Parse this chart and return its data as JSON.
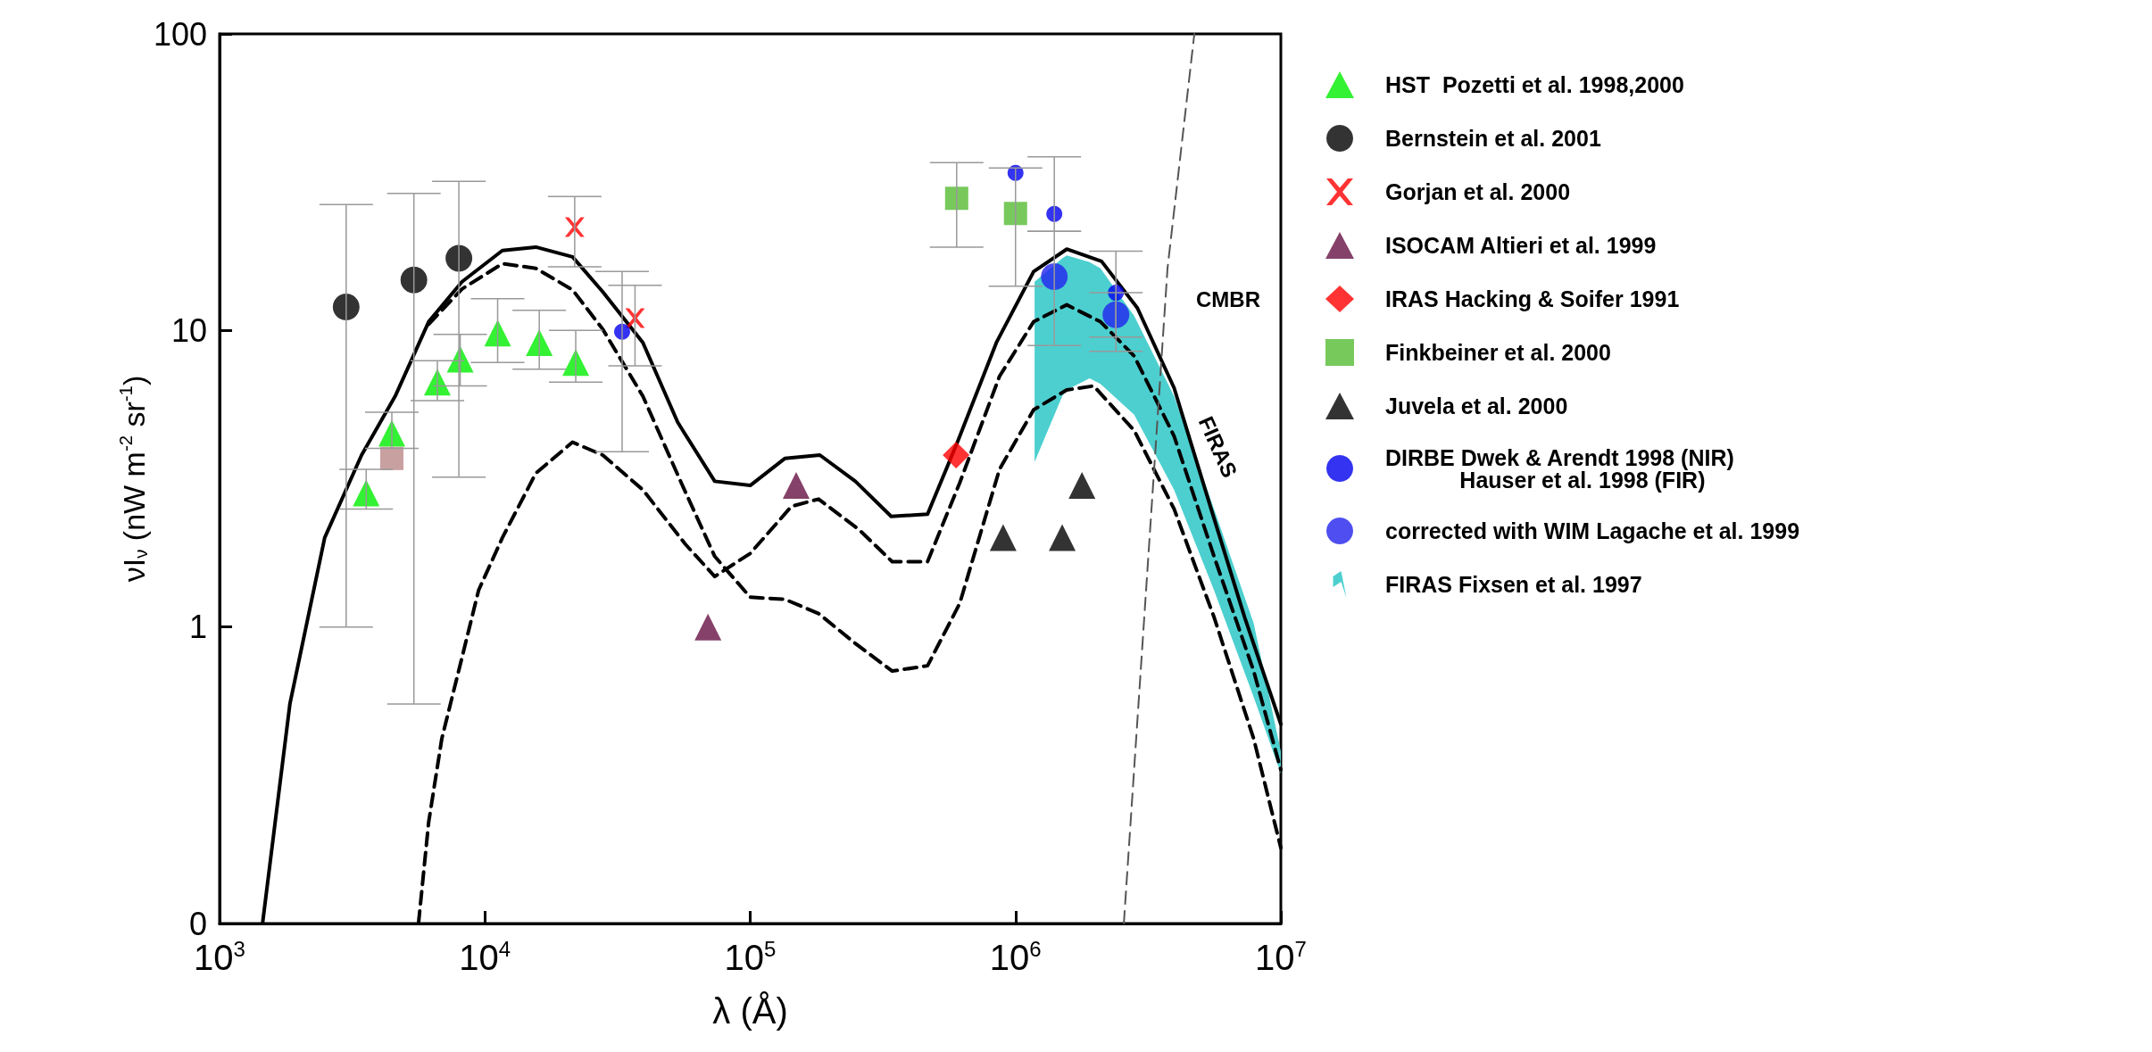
{
  "chart_data": {
    "type": "scatter",
    "xlabel": "λ (Å)",
    "ylabel": "νI$_{ν}$ (nW m$^{-2}$ sr$^{-1}$)",
    "log": "xy",
    "grid": false,
    "legend": "right",
    "xlim": [
      1000,
      10000000
    ],
    "ylim": [
      0.1,
      100
    ],
    "xticks": [
      {
        "value": 1000,
        "label": "10$^{3}$"
      },
      {
        "value": 10000,
        "label": "10$^{4}$"
      },
      {
        "value": 100000,
        "label": "10$^{5}$"
      },
      {
        "value": 1000000,
        "label": "10$^{6}$"
      },
      {
        "value": 10000000,
        "label": "10$^{7}$"
      }
    ],
    "yticks": [
      {
        "value": 0.1,
        "label": "0"
      },
      1,
      10,
      100
    ],
    "series": [
      {
        "type": "line",
        "line_style": "solid",
        "color": "#000000",
        "x": [
          1452,
          1841,
          2490,
          3430,
          4590,
          6140,
          8200,
          11640,
          15560,
          21400,
          27800,
          39400,
          53300,
          73500,
          100000,
          135000,
          183000,
          249000,
          340000,
          466000,
          604000,
          847000,
          1170000,
          1560000,
          2110000,
          2880000,
          3960000,
          5460000,
          7300000,
          10000000
        ],
        "values": [
          0.1,
          0.55,
          2.0,
          3.8,
          6.0,
          10.7,
          14.6,
          18.6,
          19.1,
          17.7,
          13.5,
          9.1,
          4.9,
          3.1,
          3.0,
          3.7,
          3.8,
          3.1,
          2.36,
          2.4,
          4.2,
          9.1,
          15.8,
          18.8,
          17.1,
          11.9,
          6.4,
          2.5,
          1.08,
          0.47
        ]
      },
      {
        "type": "line",
        "line_style": "dashed",
        "color": "#000000",
        "x": [
          6140,
          8200,
          11640,
          15560,
          21400,
          27800,
          39400,
          55000,
          73500,
          100000,
          135000,
          181000,
          249000,
          343000,
          466000,
          616000,
          870000,
          1170000,
          1560000,
          1970000,
          2800000,
          3960000,
          5600000,
          7900000,
          10000000
        ],
        "values": [
          10.5,
          13.8,
          16.8,
          16.2,
          13.7,
          10.1,
          6.0,
          3.06,
          1.73,
          1.26,
          1.24,
          1.11,
          0.88,
          0.71,
          0.74,
          1.2,
          3.4,
          5.4,
          6.3,
          6.5,
          4.6,
          2.5,
          1.08,
          0.42,
          0.18
        ]
      },
      {
        "type": "line",
        "line_style": "dashed",
        "color": "#000000",
        "x": [
          5620,
          6140,
          6880,
          8200,
          9470,
          11640,
          15560,
          21400,
          27800,
          39400,
          57000,
          73500,
          100000,
          143000,
          181000,
          257000,
          343000,
          466000,
          616000,
          870000,
          1170000,
          1560000,
          2090000,
          2800000,
          3960000,
          5600000,
          7900000,
          10000000
        ],
        "values": [
          0.1,
          0.22,
          0.42,
          0.79,
          1.33,
          2.0,
          3.3,
          4.2,
          3.8,
          2.9,
          1.9,
          1.48,
          1.77,
          2.55,
          2.7,
          2.13,
          1.66,
          1.66,
          3.06,
          7.0,
          10.7,
          12.2,
          10.7,
          8.2,
          4.4,
          1.73,
          0.71,
          0.33
        ]
      },
      {
        "type": "line",
        "line_style": "dashed",
        "color": "#555555",
        "x": [
          2560000,
          3330000,
          3740000,
          4720000
        ],
        "values": [
          0.1,
          3.4,
          16.2,
          100
        ]
      },
      {
        "name": "HST  Pozetti et al. 1998,2000",
        "marker": "triangle",
        "color": "#00ee00",
        "x": [
          3570,
          4460,
          6620,
          8070,
          11170,
          16030,
          22000
        ],
        "values": [
          2.83,
          4.5,
          6.7,
          8.0,
          9.8,
          9.1,
          7.8
        ],
        "errors": [
          [
            2.5,
            3.4
          ],
          [
            4.0,
            5.3
          ],
          [
            5.8,
            7.9
          ],
          [
            6.5,
            9.7
          ],
          [
            7.8,
            12.8
          ],
          [
            7.4,
            11.7
          ],
          [
            6.7,
            10.0
          ]
        ]
      },
      {
        "name": "Bernstein et al. 2001",
        "marker": "circle",
        "color": "#000000",
        "x": [
          3000,
          5400,
          7980
        ],
        "values": [
          12.0,
          14.8,
          17.5
        ],
        "errors": [
          [
            1.0,
            26.6
          ],
          [
            0.55,
            29
          ],
          [
            3.2,
            31.8
          ]
        ]
      },
      {
        "name": "Gorjan et al. 2000",
        "marker": "cross",
        "color": "#ff0000",
        "x": [
          21800,
          36800
        ],
        "values": [
          22.3,
          11.0
        ],
        "errors": [
          [
            16.4,
            28.3
          ],
          [
            7.6,
            14.2
          ]
        ]
      },
      {
        "name": "ISOCAM Altieri et al. 1999",
        "marker": "triangle",
        "color": "#661144",
        "x": [
          69300,
          149000
        ],
        "values": [
          1.0,
          3.0
        ]
      },
      {
        "name": "IRAS Hacking & Soifer 1991",
        "marker": "diamond",
        "color": "#ff0000",
        "x": [
          597000
        ],
        "values": [
          3.8
        ]
      },
      {
        "name": "Finkbeiner et al. 2000",
        "marker": "square",
        "color": "#55bb33",
        "x": [
          600000,
          1000000
        ],
        "values": [
          27.9,
          24.8
        ],
        "errors": [
          [
            19.1,
            36.8
          ],
          [
            14.1,
            35.3
          ]
        ]
      },
      {
        "name": "Juvela et al. 2000",
        "marker": "triangle",
        "color": "#000000",
        "x": [
          898000,
          1500000,
          1780000
        ],
        "values": [
          2.0,
          2.0,
          3.0
        ]
      },
      {
        "name": "DIRBE Dwek & Arendt 1998 (NIR)\n            Hauser et al. 1998 (FIR)",
        "marker": "circle",
        "color": "#0000ee",
        "x": [
          32900,
          1000000,
          1400000,
          2390000
        ],
        "values": [
          9.9,
          34,
          24.7,
          13.4
        ],
        "errors": [
          [
            3.9,
            15.8
          ],
          null,
          [
            21.6,
            38.5
          ],
          [
            9.5,
            18.5
          ]
        ]
      },
      {
        "name": "corrected with WIM Lagache et al. 1999",
        "marker": "circle",
        "color": "#2222ee",
        "x": [
          1400000,
          2390000
        ],
        "values": [
          15.2,
          11.3
        ],
        "errors": [
          [
            8.9,
            21.6
          ],
          [
            8.5,
            13.4
          ]
        ]
      },
      {
        "marker": "square",
        "color": "#bb8888",
        "x": [
          4460
        ],
        "values": [
          3.7
        ]
      },
      {
        "type": "area",
        "name": "FIRAS Fixsen et al. 1997",
        "color": "#4dcfcf",
        "x": [
          1180000,
          1500000,
          1560000,
          1900000,
          2090000,
          2800000,
          3960000,
          5600000,
          7900000,
          10000000
        ],
        "lower": [
          3.6,
          6.0,
          6.3,
          6.9,
          6.6,
          5.2,
          2.9,
          1.33,
          0.58,
          0.32
        ],
        "upper": [
          14.6,
          17.5,
          17.9,
          17.0,
          16.2,
          11.2,
          6.0,
          2.5,
          1.03,
          0.38
        ],
        "values": [
          null,
          null,
          null,
          null,
          null,
          null,
          null,
          null,
          null,
          null
        ]
      }
    ],
    "annotations": [
      "CMBR",
      "FIRAS"
    ]
  }
}
